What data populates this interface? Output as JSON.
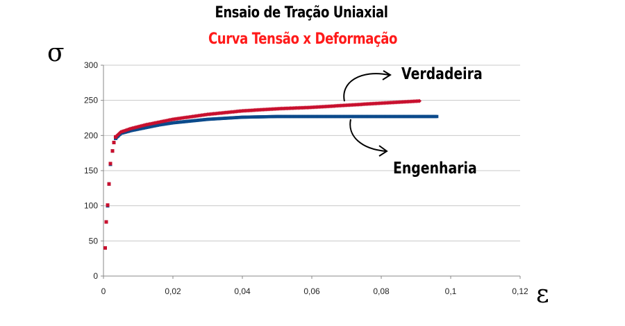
{
  "title": "Ensaio de Tração Uniaxial",
  "subtitle": "Curva Tensão x Deformação",
  "y_symbol": "σ",
  "x_symbol": "ε",
  "annotations": {
    "true_curve": "Verdadeira",
    "engineering_curve": "Engenharia"
  },
  "colors": {
    "true_curve": "#c8102e",
    "engineering_curve": "#0b4a8b",
    "subtitle": "#ff1a1a",
    "grid": "#c8c8c8"
  },
  "chart_data": {
    "type": "scatter",
    "xlim": [
      0,
      0.12
    ],
    "ylim": [
      0,
      300
    ],
    "x_ticks": [
      "0",
      "0,02",
      "0,04",
      "0,06",
      "0,08",
      "0,1",
      "0,12"
    ],
    "y_ticks": [
      "0",
      "50",
      "100",
      "150",
      "200",
      "250",
      "300"
    ],
    "grid": "horizontal",
    "series": [
      {
        "name": "Verdadeira",
        "color": "#c8102e",
        "points": [
          [
            0.0005,
            40
          ],
          [
            0.0008,
            77
          ],
          [
            0.0012,
            101
          ],
          [
            0.0016,
            131
          ],
          [
            0.002,
            160
          ],
          [
            0.0026,
            178
          ],
          [
            0.003,
            190
          ],
          [
            0.0035,
            198
          ],
          [
            0.005,
            205
          ],
          [
            0.008,
            210
          ],
          [
            0.012,
            215
          ],
          [
            0.016,
            219
          ],
          [
            0.02,
            223
          ],
          [
            0.03,
            230
          ],
          [
            0.04,
            235
          ],
          [
            0.05,
            238
          ],
          [
            0.06,
            240
          ],
          [
            0.07,
            243
          ],
          [
            0.08,
            246
          ],
          [
            0.091,
            249
          ]
        ]
      },
      {
        "name": "Engenharia",
        "color": "#0b4a8b",
        "points": [
          [
            0.0005,
            40
          ],
          [
            0.0008,
            77
          ],
          [
            0.0012,
            100
          ],
          [
            0.0016,
            131
          ],
          [
            0.002,
            159
          ],
          [
            0.0026,
            178
          ],
          [
            0.003,
            190
          ],
          [
            0.0035,
            196
          ],
          [
            0.005,
            203
          ],
          [
            0.008,
            207
          ],
          [
            0.012,
            211
          ],
          [
            0.016,
            215
          ],
          [
            0.02,
            218
          ],
          [
            0.03,
            223
          ],
          [
            0.04,
            226
          ],
          [
            0.05,
            227
          ],
          [
            0.06,
            227
          ],
          [
            0.07,
            227
          ],
          [
            0.08,
            227
          ],
          [
            0.096,
            227
          ]
        ]
      }
    ]
  }
}
